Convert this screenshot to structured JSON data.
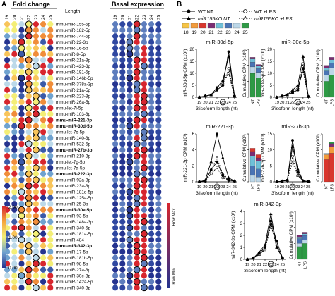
{
  "panel_a": {
    "label": "A",
    "fold_title": "Fold change",
    "length_title": "Length",
    "basal_title": "Basal expression",
    "length_ticks": [
      "19",
      "20",
      "21",
      "22",
      "23",
      "24",
      "25"
    ],
    "colorbar_ticks": [
      "2.00",
      "1.00",
      "0.00"
    ],
    "row_max": "Row Max",
    "row_min": "Raw Min",
    "mirnas": [
      {
        "name": "mmu-miR-155-5p",
        "bold": false
      },
      {
        "name": "mmu-miR-182-5p",
        "bold": false
      },
      {
        "name": "mmu-miR-744-5p",
        "bold": false
      },
      {
        "name": "mmu-miR-22-3p",
        "bold": false
      },
      {
        "name": "mmu-miR-16-5p",
        "bold": false
      },
      {
        "name": "mmu-miR-8-5p",
        "bold": false
      },
      {
        "name": "mmu-miR-21a-3p",
        "bold": false
      },
      {
        "name": "mmu-miR-423-3p",
        "bold": false
      },
      {
        "name": "mmu-miR-191-5p",
        "bold": false
      },
      {
        "name": "mmu-miR-146b-5p",
        "bold": false
      },
      {
        "name": "mmu-miR-378a-3p",
        "bold": false
      },
      {
        "name": "mmu-miR-21a-5p",
        "bold": false
      },
      {
        "name": "mmu-miR-223-3p",
        "bold": false
      },
      {
        "name": "mmu-miR-26a-5p",
        "bold": false
      },
      {
        "name": "mmu-let-7i-5p",
        "bold": false
      },
      {
        "name": "mmu-miR-103-3p",
        "bold": false
      },
      {
        "name": "mmu-miR-221-3p",
        "bold": true
      },
      {
        "name": "mmu-miR-30d-5p",
        "bold": true
      },
      {
        "name": "mmu-let-7c-5p",
        "bold": false
      },
      {
        "name": "mmu-miR-140-3p",
        "bold": false
      },
      {
        "name": "mmu-miR-532-5p",
        "bold": false
      },
      {
        "name": "mmu-miR-27b-3p",
        "bold": true
      },
      {
        "name": "mmu-miR-210-3p",
        "bold": false
      },
      {
        "name": "mmu-let-7g-5p",
        "bold": false
      },
      {
        "name": "mmu-let-7a-5p",
        "bold": false
      },
      {
        "name": "mmu-miR-222-3p",
        "bold": true
      },
      {
        "name": "mmu-miR-92a-3p",
        "bold": false
      },
      {
        "name": "mmu-miR-23a-3p",
        "bold": false
      },
      {
        "name": "mmu-miR-181d-5p",
        "bold": false
      },
      {
        "name": "mmu-miR-125a-5p",
        "bold": false
      },
      {
        "name": "mmu-miR-25-3p",
        "bold": false
      },
      {
        "name": "mmu-miR-30e-5p",
        "bold": true
      },
      {
        "name": "mmu-miR-93-5p",
        "bold": false
      },
      {
        "name": "mmu-miR-148a-3p",
        "bold": false
      },
      {
        "name": "mmu-miR-340-5p",
        "bold": false
      },
      {
        "name": "mmu-miR-181a-5p",
        "bold": false
      },
      {
        "name": "mmu-miR-484",
        "bold": false
      },
      {
        "name": "mmu-miR-342-3p",
        "bold": true
      },
      {
        "name": "mmu-miR-17-5p",
        "bold": false
      },
      {
        "name": "mmu-miR-181b-5p",
        "bold": false
      },
      {
        "name": "mmu-miR-98-5p",
        "bold": false
      },
      {
        "name": "mmu-miR-27a-3p",
        "bold": false
      },
      {
        "name": "mmu-miR-30e-3p",
        "bold": false
      },
      {
        "name": "mmu-miR-142a-5p",
        "bold": false
      },
      {
        "name": "mmu-miR-340-3p",
        "bold": false
      }
    ]
  },
  "panel_b": {
    "label": "B",
    "legend": {
      "wt_nt": "WT NT",
      "wt_lps": "WT +LPS",
      "ko_nt": "miR155KO NT",
      "ko_lps": "miR155KO +LPS",
      "swatch_labels": [
        "18",
        "19",
        "20",
        "21",
        "22",
        "23",
        "24",
        "25"
      ],
      "swatch_colors": [
        "#f6c445",
        "#f29b3b",
        "#d8372e",
        "#7b2c72",
        "#6fc0d8",
        "#4a74b4",
        "#bcd7e8",
        "#2e9a45"
      ]
    },
    "xlabel": "3'isoform length (nt)",
    "cum_label": "Cumulative CPM (x10³)",
    "bar_labels": [
      "NT",
      "LPS"
    ],
    "plots": [
      {
        "title": "miR-30d-5p",
        "ylabel": "miR-30d-5p CPM (x10³)",
        "yticks": [
          "0",
          "5",
          "10",
          "15",
          "20"
        ],
        "ymax": 20,
        "wt_nt": [
          0,
          0.5,
          1,
          3,
          5,
          19,
          0.5
        ],
        "ko_nt": [
          0,
          0.5,
          1,
          4,
          7,
          17,
          0.3
        ],
        "wt_lps": [
          0,
          0.5,
          1,
          3,
          5,
          12,
          0.5
        ],
        "ko_lps": [
          0,
          0.5,
          1,
          4,
          6,
          10,
          0.3
        ],
        "cum_ticks": [
          "0",
          "20",
          "40",
          "60"
        ],
        "cum_max": 60,
        "bars": [
          [
            [
              "#2e9a45",
              30
            ],
            [
              "#bcd7e8",
              8
            ],
            [
              "#4a74b4",
              6
            ],
            [
              "#6fc0d8",
              4
            ],
            [
              "#7b2c72",
              2
            ]
          ],
          [
            [
              "#2e9a45",
              24
            ],
            [
              "#bcd7e8",
              7
            ],
            [
              "#4a74b4",
              5
            ],
            [
              "#6fc0d8",
              3
            ],
            [
              "#7b2c72",
              2
            ]
          ]
        ]
      },
      {
        "title": "miR-30e-5p",
        "ylabel": "miR-30e-5p CPM (x10³)",
        "yticks": [
          "0",
          "5",
          "10",
          "15",
          "20"
        ],
        "ymax": 20,
        "wt_nt": [
          0,
          0.5,
          1,
          2,
          3,
          12,
          0.3
        ],
        "ko_nt": [
          0,
          0.5,
          1,
          3,
          5,
          17,
          0.3
        ],
        "wt_lps": [
          0,
          0.5,
          1,
          2,
          3,
          14,
          0.3
        ],
        "ko_lps": [
          0,
          0.5,
          1,
          2,
          4,
          11,
          0.3
        ],
        "cum_ticks": [
          "0",
          "20",
          "40",
          "60"
        ],
        "cum_max": 60,
        "bars": [
          [
            [
              "#2e9a45",
              20
            ],
            [
              "#bcd7e8",
              8
            ],
            [
              "#4a74b4",
              5
            ],
            [
              "#6fc0d8",
              4
            ],
            [
              "#7b2c72",
              3
            ]
          ],
          [
            [
              "#2e9a45",
              28
            ],
            [
              "#bcd7e8",
              9
            ],
            [
              "#4a74b4",
              6
            ],
            [
              "#6fc0d8",
              4
            ],
            [
              "#7b2c72",
              3
            ]
          ]
        ]
      },
      {
        "title": "miR-221-3p",
        "ylabel": "miR-221-3p CPM (x10³)",
        "yticks": [
          "0",
          "2",
          "4",
          "6"
        ],
        "ymax": 6,
        "wt_nt": [
          0,
          0.1,
          1.5,
          2.5,
          0.8,
          0.2,
          0.1
        ],
        "ko_nt": [
          0,
          0.2,
          2.5,
          6,
          3,
          0.5,
          0.1
        ],
        "wt_lps": [
          0,
          0.1,
          1,
          1.8,
          0.5,
          0.2,
          0.1
        ],
        "ko_lps": [
          0,
          0.1,
          1.5,
          3,
          1,
          0.3,
          0.1
        ],
        "cum_ticks": [
          "0",
          "5",
          "10",
          "15"
        ],
        "cum_max": 15,
        "bars": [
          [
            [
              "#bcd7e8",
              2
            ],
            [
              "#4a74b4",
              3
            ],
            [
              "#6fc0d8",
              3
            ],
            [
              "#7b2c72",
              1.5
            ],
            [
              "#d8372e",
              1
            ]
          ],
          [
            [
              "#bcd7e8",
              1.5
            ],
            [
              "#4a74b4",
              2.5
            ],
            [
              "#6fc0d8",
              2.5
            ],
            [
              "#7b2c72",
              1
            ],
            [
              "#d8372e",
              1
            ]
          ]
        ]
      },
      {
        "title": "miR-27b-3p",
        "ylabel": "miR-27b-3p CPM (x10³)",
        "yticks": [
          "0",
          "5",
          "10",
          "15"
        ],
        "ymax": 15,
        "wt_nt": [
          0,
          0.2,
          0.5,
          13,
          3,
          0.3,
          0.1
        ],
        "ko_nt": [
          0,
          0.2,
          0.5,
          11,
          4,
          0.3,
          0.1
        ],
        "wt_lps": [
          0,
          0.2,
          0.5,
          8,
          2,
          0.3,
          0.1
        ],
        "ko_lps": [
          0,
          0.2,
          0.5,
          6,
          2,
          0.3,
          0.1
        ],
        "cum_ticks": [
          "0",
          "10",
          "20",
          "30"
        ],
        "cum_max": 30,
        "bars": [
          [
            [
              "#d8372e",
              14
            ],
            [
              "#f29b3b",
              3
            ],
            [
              "#bcd7e8",
              1
            ]
          ],
          [
            [
              "#d8372e",
              18
            ],
            [
              "#f29b3b",
              4
            ],
            [
              "#7b2c72",
              2
            ],
            [
              "#2e9a45",
              1
            ]
          ]
        ]
      },
      {
        "title": "miR-342-3p",
        "ylabel": "miR-342-3p CPM (x10³)",
        "yticks": [
          "0",
          "1",
          "2",
          "3",
          "4"
        ],
        "ymax": 4,
        "wt_nt": [
          0,
          0.1,
          0.5,
          1,
          3.2,
          1.5,
          0.1
        ],
        "ko_nt": [
          0,
          0.1,
          0.6,
          1.2,
          3.8,
          1,
          0.1
        ],
        "wt_lps": [
          0,
          0.1,
          0.4,
          0.8,
          2.8,
          1.2,
          0.1
        ],
        "ko_lps": [
          0,
          0.1,
          0.4,
          0.9,
          3,
          1,
          0.1
        ],
        "cum_ticks": [
          "0",
          "5",
          "10",
          "15"
        ],
        "cum_max": 15,
        "bars": [
          [
            [
              "#2e9a45",
              4
            ],
            [
              "#bcd7e8",
              1
            ],
            [
              "#4a74b4",
              1.5
            ],
            [
              "#6fc0d8",
              0.5
            ],
            [
              "#7b2c72",
              0.5
            ]
          ],
          [
            [
              "#2e9a45",
              5
            ],
            [
              "#bcd7e8",
              1
            ],
            [
              "#4a74b4",
              1.5
            ],
            [
              "#6fc0d8",
              0.5
            ],
            [
              "#7b2c72",
              0.5
            ]
          ]
        ]
      }
    ]
  }
}
